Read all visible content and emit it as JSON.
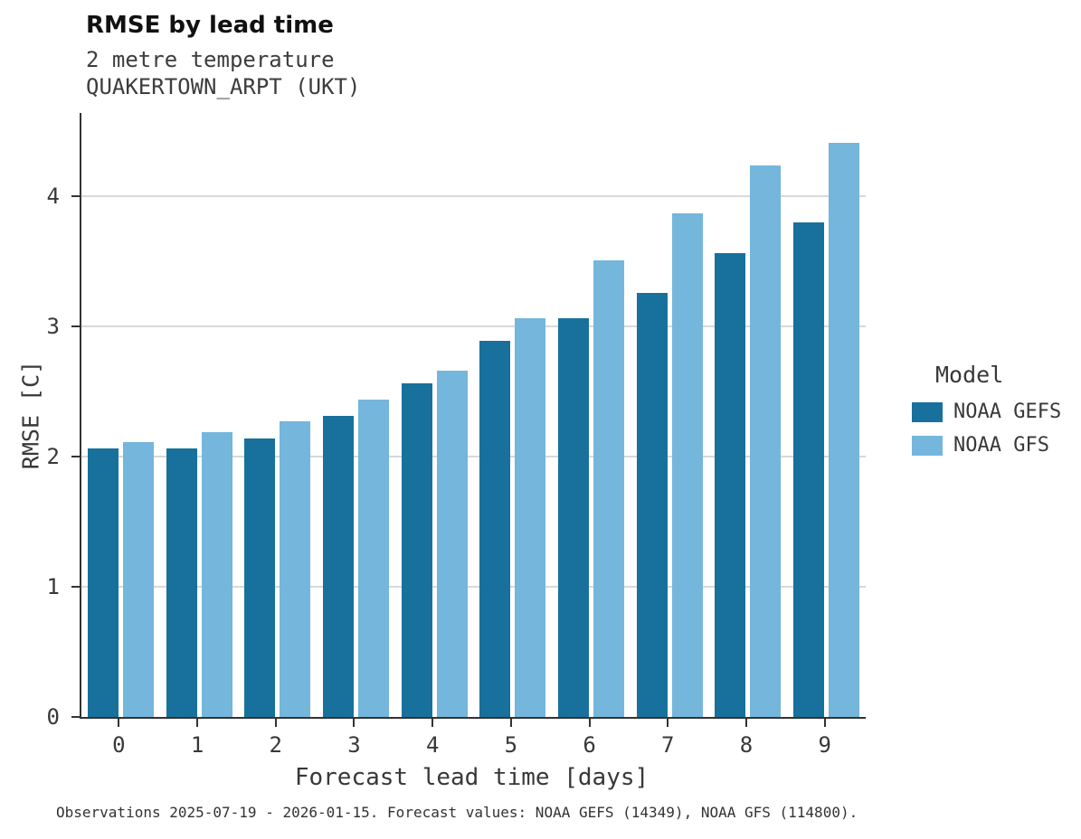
{
  "title": "RMSE by lead time",
  "subtitle_variable": "2 metre temperature",
  "subtitle_station": "QUAKERTOWN_ARPT (UKT)",
  "footer": "Observations 2025-07-19 - 2026-01-15. Forecast values: NOAA GEFS (14349), NOAA GFS (114800).",
  "legend": {
    "title": "Model"
  },
  "colors": {
    "gefs_dark_blue": "#17719c",
    "gfs_light_blue": "#74b6dc",
    "gridline": "#d9d9d9",
    "axis": "#333333"
  },
  "chart_data": {
    "type": "bar",
    "title": "RMSE by lead time",
    "subtitle": [
      "2 metre temperature",
      "QUAKERTOWN_ARPT (UKT)"
    ],
    "xlabel": "Forecast lead time [days]",
    "ylabel": "RMSE [C]",
    "categories": [
      "0",
      "1",
      "2",
      "3",
      "4",
      "5",
      "6",
      "7",
      "8",
      "9"
    ],
    "series": [
      {
        "name": "NOAA GEFS",
        "color": "#17719c",
        "values": [
          2.06,
          2.06,
          2.14,
          2.31,
          2.56,
          2.89,
          3.06,
          3.26,
          3.56,
          3.8
        ]
      },
      {
        "name": "NOAA GFS",
        "color": "#74b6dc",
        "values": [
          2.11,
          2.19,
          2.27,
          2.44,
          2.66,
          3.06,
          3.51,
          3.87,
          4.24,
          4.41
        ]
      }
    ],
    "ylim": [
      0,
      4.64
    ],
    "yticks": [
      0,
      1,
      2,
      3,
      4
    ],
    "grid": true,
    "legend_position": "right",
    "caption": "Observations 2025-07-19 - 2026-01-15. Forecast values: NOAA GEFS (14349), NOAA GFS (114800)."
  }
}
